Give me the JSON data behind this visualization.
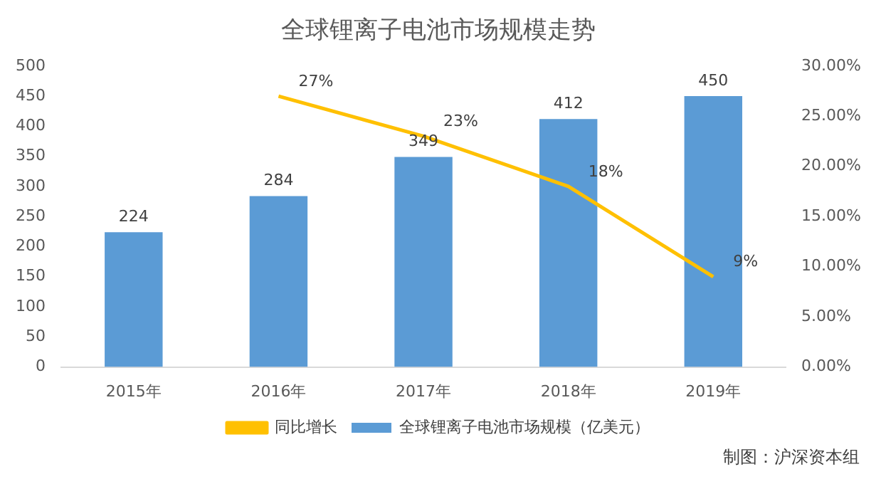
{
  "chart_data": {
    "type": "bar",
    "title": "全球锂离子电池市场规模走势",
    "categories": [
      "2015年",
      "2016年",
      "2017年",
      "2018年",
      "2019年"
    ],
    "series": [
      {
        "name": "全球锂离子电池市场规模（亿美元）",
        "color": "#5b9bd5",
        "values": [
          224,
          284,
          349,
          412,
          450
        ]
      },
      {
        "name": "同比增长",
        "type": "line",
        "axis": "y2",
        "color": "#ffc000",
        "values": [
          null,
          27,
          23,
          18,
          9
        ],
        "value_labels": [
          null,
          "27%",
          "23%",
          "18%",
          "9%"
        ]
      }
    ],
    "data_labels": true,
    "ylim": [
      0,
      500
    ],
    "yticks": [
      0,
      50,
      100,
      150,
      200,
      250,
      300,
      350,
      400,
      450,
      500
    ],
    "y2lim": [
      0,
      30
    ],
    "y2ticks": [
      {
        "value": 0,
        "label": "0.00%"
      },
      {
        "value": 5,
        "label": "5.00%"
      },
      {
        "value": 10,
        "label": "10.00%"
      },
      {
        "value": 15,
        "label": "15.00%"
      },
      {
        "value": 20,
        "label": "20.00%"
      },
      {
        "value": 25,
        "label": "25.00%"
      },
      {
        "value": 30,
        "label": "30.00%"
      }
    ],
    "grid": false,
    "legend": "bottom",
    "marker": "none",
    "annotations": [
      "制图：沪深资本组"
    ]
  }
}
